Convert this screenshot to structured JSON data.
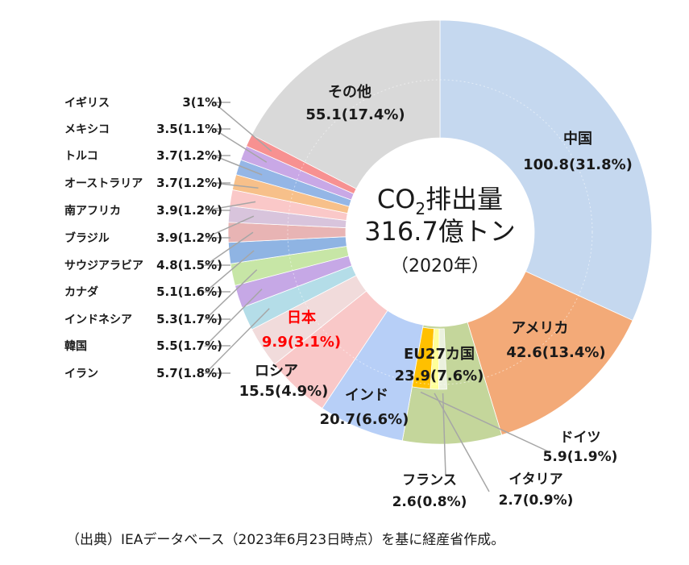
{
  "chart_data": {
    "type": "pie",
    "style": "donut",
    "center": {
      "line1": "CO",
      "line1_sub": "2",
      "line1_rest": "排出量",
      "line2": "316.7億トン",
      "line3": "（2020年）"
    },
    "outer_ring": [
      {
        "name": "中国",
        "value_label": "100.8(31.8%)",
        "value": 100.8,
        "percent": 31.8,
        "color": "#c5d8ef"
      },
      {
        "name": "アメリカ",
        "value_label": "42.6(13.4%)",
        "value": 42.6,
        "percent": 13.4,
        "color": "#f3aa78"
      },
      {
        "name": "EU27カ国",
        "value_label": "23.9(7.6%)",
        "value": 23.9,
        "percent": 7.6,
        "color": "#c4d69b"
      },
      {
        "name": "インド",
        "value_label": "20.7(6.6%)",
        "value": 20.7,
        "percent": 6.6,
        "color": "#b7cff7"
      },
      {
        "name": "ロシア",
        "value_label": "15.5(4.9%)",
        "value": 15.5,
        "percent": 4.9,
        "color": "#f9c8c8"
      },
      {
        "name": "日本",
        "value_label": "9.9(3.1%)",
        "value": 9.9,
        "percent": 3.1,
        "color": "#f1dbdb",
        "highlight": "#ff0000"
      },
      {
        "name": "イラン",
        "value_label": "5.7(1.8%)",
        "value": 5.7,
        "percent": 1.8,
        "color": "#b4dde8"
      },
      {
        "name": "韓国",
        "value_label": "5.5(1.7%)",
        "value": 5.5,
        "percent": 1.7,
        "color": "#c6a8e6"
      },
      {
        "name": "インドネシア",
        "value_label": "5.3(1.7%)",
        "value": 5.3,
        "percent": 1.7,
        "color": "#c7e6a6"
      },
      {
        "name": "カナダ",
        "value_label": "5.1(1.6%)",
        "value": 5.1,
        "percent": 1.6,
        "color": "#8fb4e3"
      },
      {
        "name": "サウジアラビア",
        "value_label": "4.8(1.5%)",
        "value": 4.8,
        "percent": 1.5,
        "color": "#e8b4b4"
      },
      {
        "name": "ブラジル",
        "value_label": "3.9(1.2%)",
        "value": 3.9,
        "percent": 1.2,
        "color": "#d8c4dc"
      },
      {
        "name": "南アフリカ",
        "value_label": "3.9(1.2%)",
        "value": 3.9,
        "percent": 1.2,
        "color": "#fac8c8"
      },
      {
        "name": "オーストラリア",
        "value_label": "3.7(1.2%)",
        "value": 3.7,
        "percent": 1.2,
        "color": "#f7c08a"
      },
      {
        "name": "トルコ",
        "value_label": "3.7(1.2%)",
        "value": 3.7,
        "percent": 1.2,
        "color": "#94b6e6"
      },
      {
        "name": "メキシコ",
        "value_label": "3.5(1.1%)",
        "value": 3.5,
        "percent": 1.1,
        "color": "#c9a8e6"
      },
      {
        "name": "イギリス",
        "value_label": "3(1%)",
        "value": 3.0,
        "percent": 1.0,
        "color": "#f79191"
      },
      {
        "name": "その他",
        "value_label": "55.1(17.4%)",
        "value": 55.1,
        "percent": 17.4,
        "color": "#d9d9d9"
      }
    ],
    "eu_breakdown": [
      {
        "name": "ドイツ",
        "value_label": "5.9(1.9%)",
        "value": 5.9,
        "percent": 1.9,
        "color": "#ffc000"
      },
      {
        "name": "イタリア",
        "value_label": "2.7(0.9%)",
        "value": 2.7,
        "percent": 0.9,
        "color": "#ffff99"
      },
      {
        "name": "フランス",
        "value_label": "2.6(0.8%)",
        "value": 2.6,
        "percent": 0.8,
        "color": "#ebf1de"
      }
    ]
  },
  "source_note": "（出典）IEAデータベース（2023年6月23日時点）を基に経産省作成。"
}
